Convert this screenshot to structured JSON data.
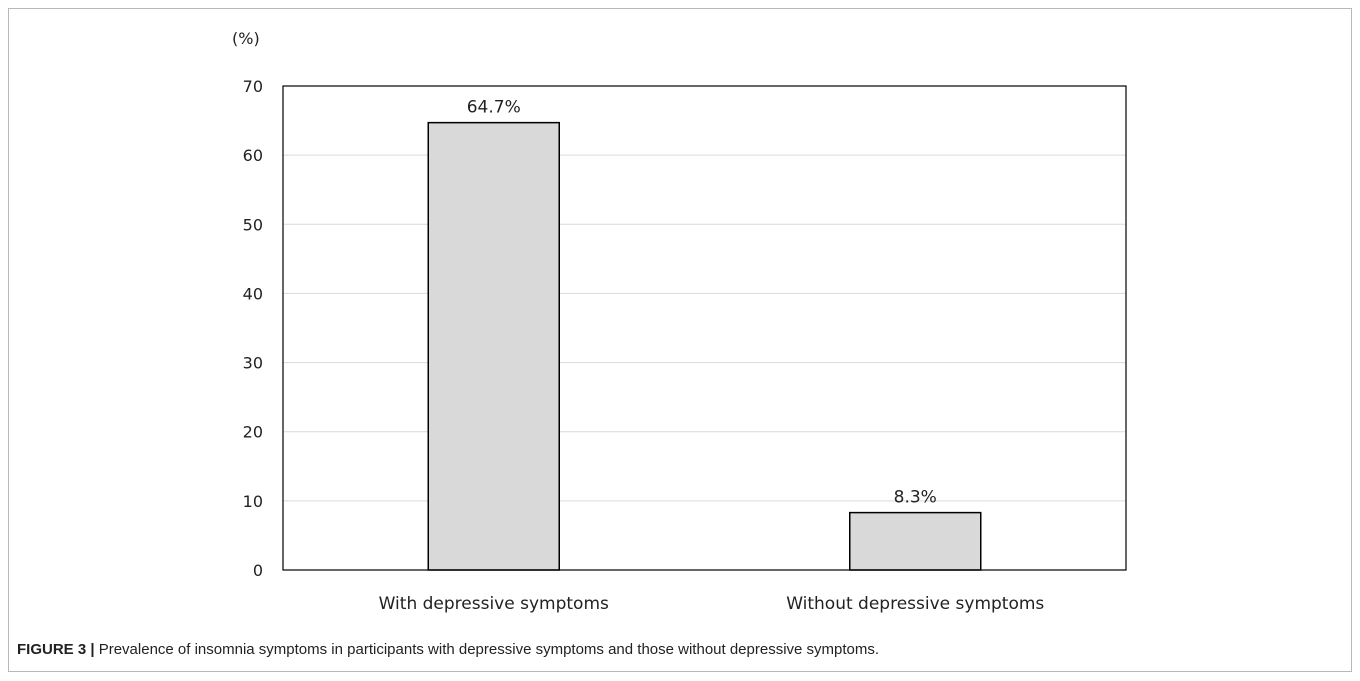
{
  "chart_data": {
    "type": "bar",
    "categories": [
      "With depressive symptoms",
      "Without depressive symptoms"
    ],
    "values": [
      64.7,
      8.3
    ],
    "data_labels": [
      "64.7%",
      "8.3%"
    ],
    "y_unit": "(%)",
    "ylim": [
      0,
      70
    ],
    "yticks": [
      0,
      10,
      20,
      30,
      40,
      50,
      60,
      70
    ],
    "grid": true,
    "bar_color": "#d9d9d9",
    "bar_stroke": "#000000"
  },
  "caption": {
    "label": "FIGURE 3 |",
    "text": " Prevalence of insomnia symptoms in participants with depressive symptoms and those without depressive symptoms."
  }
}
